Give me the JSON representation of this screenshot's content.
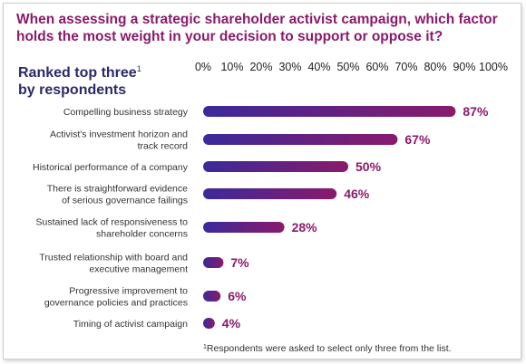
{
  "header": {
    "title": "When assessing a strategic shareholder activist campaign, which factor holds the most weight in your decision to support or oppose it?",
    "subtitle_line1": "Ranked top three",
    "subtitle_sup": "1",
    "subtitle_line2": "by respondents"
  },
  "footnote": {
    "mark": "1",
    "text": "Respondents were asked to select only three from the list."
  },
  "colors": {
    "title": "#8a1a6b",
    "subtitle": "#2a2a6a",
    "bar_start": "#3a2a9a",
    "bar_end": "#8a1a6b"
  },
  "chart_data": {
    "type": "bar",
    "orientation": "horizontal",
    "xlim": [
      0,
      100
    ],
    "x_ticks": [
      "0%",
      "10%",
      "20%",
      "30%",
      "40%",
      "50%",
      "60%",
      "70%",
      "80%",
      "90%",
      "100%"
    ],
    "categories": [
      [
        "Compelling business strategy"
      ],
      [
        "Activist's investment horizon and",
        "track record"
      ],
      [
        "Historical performance of a company"
      ],
      [
        "There is straightforward evidence",
        "of serious governance failings"
      ],
      [
        "Sustained lack of responsiveness to",
        "shareholder concerns"
      ],
      [
        "Trusted relationship with board and",
        "executive management"
      ],
      [
        "Progressive improvement to",
        "governance policies and practices"
      ],
      [
        "Timing of activist campaign"
      ]
    ],
    "values": [
      87,
      67,
      50,
      46,
      28,
      7,
      6,
      4
    ],
    "value_labels": [
      "87%",
      "67%",
      "50%",
      "46%",
      "28%",
      "7%",
      "6%",
      "4%"
    ]
  }
}
